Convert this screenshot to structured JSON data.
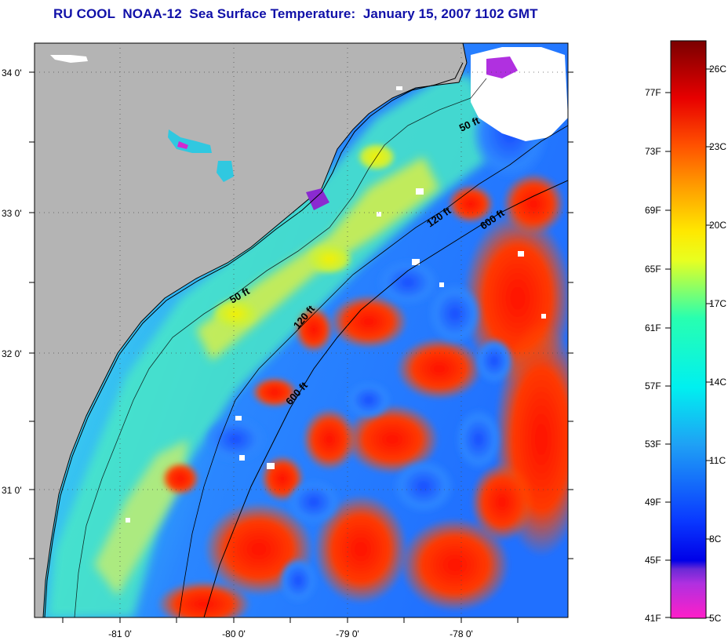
{
  "title": "RU COOL  NOAA-12  Sea Surface Temperature:  January 15, 2007 1102 GMT",
  "map": {
    "lat_labels": [
      "34 0'",
      "33 0'",
      "32 0'",
      "31 0'"
    ],
    "lon_labels": [
      "-81 0'",
      "-80 0'",
      "-79 0'",
      "-78 0'"
    ],
    "contours": [
      "50 ft",
      "120 ft",
      "600 ft",
      "50 ft",
      "120 ft",
      "600 ft"
    ],
    "colors": {
      "land": "#b4b4b4",
      "cloud": "#ffffff",
      "coast": "#000000"
    }
  },
  "colorbar": {
    "fahrenheit_labels": [
      "77F",
      "73F",
      "69F",
      "65F",
      "61F",
      "57F",
      "53F",
      "49F",
      "45F",
      "41F"
    ],
    "celsius_labels": [
      "26C",
      "23C",
      "20C",
      "17C",
      "14C",
      "11C",
      "8C",
      "5C"
    ],
    "range_c": [
      5,
      27
    ]
  }
}
